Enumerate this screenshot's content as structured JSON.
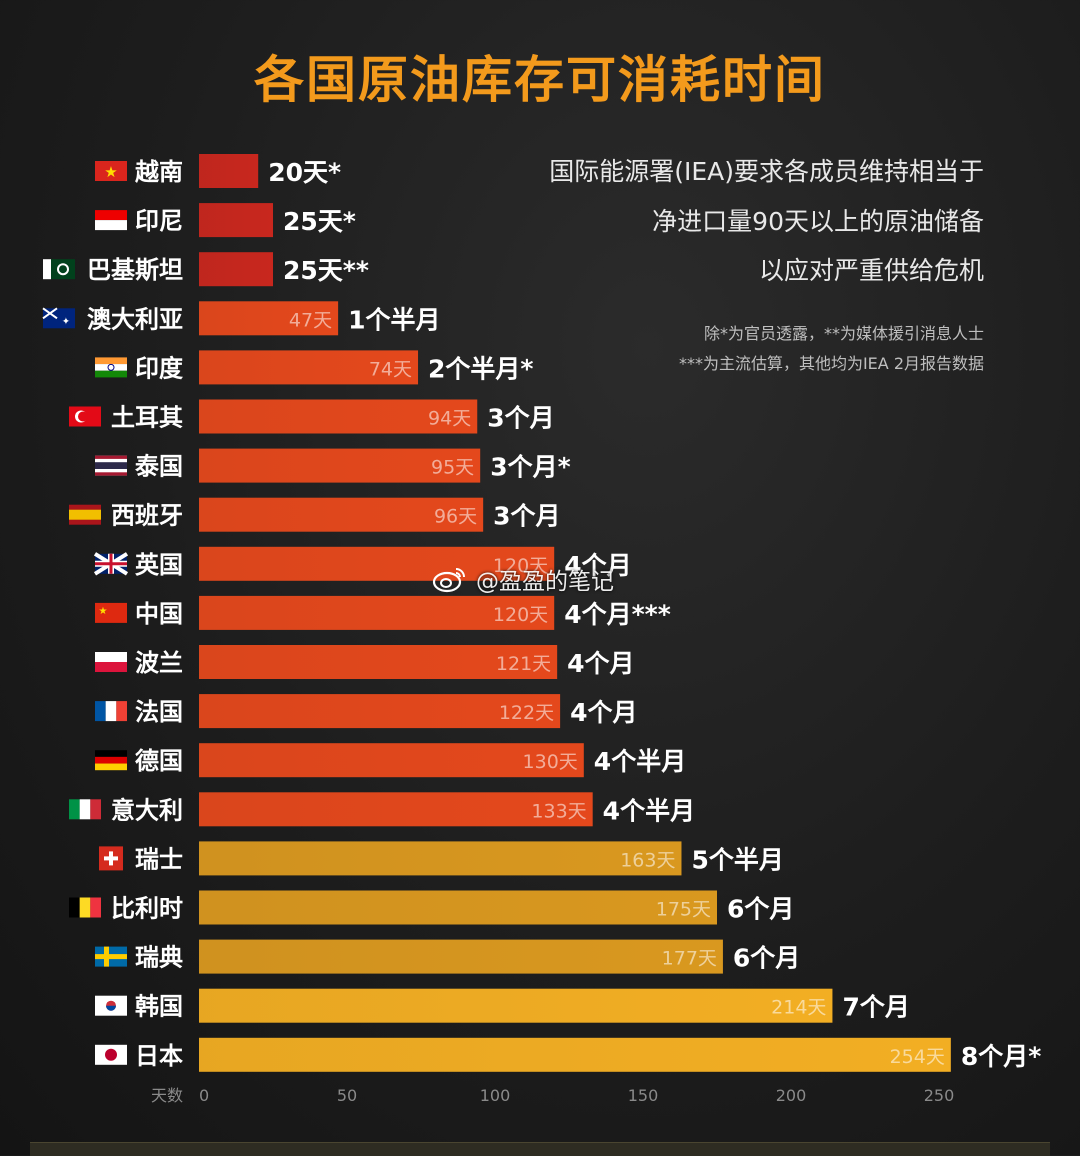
{
  "colors": {
    "title": "#f39a1c",
    "red": "#c8271e",
    "orange": "#e4481c",
    "gold": "#d9981f",
    "bright_gold": "#f2ae23",
    "background": "#1d1d1d"
  },
  "title": "各国原油库存可消耗时间",
  "notes": [
    "国际能源署(IEA)要求各成员维持相当于",
    "净进口量90天以上的原油储备",
    "以应对严重供给危机"
  ],
  "footnotes": [
    "除*为官员透露，**为媒体援引消息人士",
    "***为主流估算，其他均为IEA 2月报告数据"
  ],
  "watermark": "@盈盈的笔记",
  "chart_data": {
    "type": "bar",
    "orientation": "horizontal",
    "title": "各国原油库存可消耗时间",
    "xlabel": "天数",
    "xlim": [
      0,
      250
    ],
    "xticks": [
      0,
      50,
      100,
      150,
      200,
      250
    ],
    "categories": [
      "越南",
      "印尼",
      "巴基斯坦",
      "澳大利亚",
      "印度",
      "土耳其",
      "泰国",
      "西班牙",
      "英国",
      "中国",
      "波兰",
      "法国",
      "德国",
      "意大利",
      "瑞士",
      "比利时",
      "瑞典",
      "韩国",
      "日本"
    ],
    "flags": [
      "vietnam-flag",
      "indonesia-flag",
      "pakistan-flag",
      "australia-flag",
      "india-flag",
      "turkey-flag",
      "thailand-flag",
      "spain-flag",
      "uk-flag",
      "china-flag",
      "poland-flag",
      "france-flag",
      "germany-flag",
      "italy-flag",
      "switzerland-flag",
      "belgium-flag",
      "sweden-flag",
      "korea-flag",
      "japan-flag"
    ],
    "values": [
      20,
      25,
      25,
      47,
      74,
      94,
      95,
      96,
      120,
      120,
      121,
      122,
      130,
      133,
      163,
      175,
      177,
      214,
      254
    ],
    "inside_labels": [
      "",
      "",
      "",
      "47天",
      "74天",
      "94天",
      "95天",
      "96天",
      "120天",
      "120天",
      "121天",
      "122天",
      "130天",
      "133天",
      "163天",
      "175天",
      "177天",
      "214天",
      "254天"
    ],
    "outside_labels": [
      "20天*",
      "25天*",
      "25天**",
      "1个半月",
      "2个半月*",
      "3个月",
      "3个月*",
      "3个月",
      "4个月",
      "4个月***",
      "4个月",
      "4个月",
      "4个半月",
      "4个半月",
      "5个半月",
      "6个月",
      "6个月",
      "7个月",
      "8个月*"
    ],
    "bar_colors": [
      "#c8271e",
      "#c8271e",
      "#c8271e",
      "#e4481c",
      "#e4481c",
      "#e4481c",
      "#e4481c",
      "#e4481c",
      "#e4481c",
      "#e4481c",
      "#e4481c",
      "#e4481c",
      "#e4481c",
      "#e4481c",
      "#d9981f",
      "#d9981f",
      "#d9981f",
      "#f2ae23",
      "#f2ae23"
    ],
    "grid": false
  }
}
